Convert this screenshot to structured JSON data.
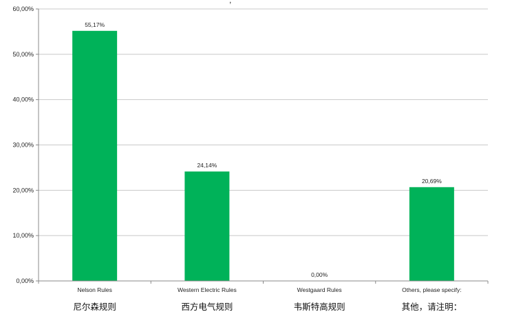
{
  "chart_data": {
    "type": "bar",
    "title": ",",
    "categories": [
      "Nelson Rules",
      "Western Electric Rules",
      "Westgaard Rules",
      "Others, please specify:"
    ],
    "categories_cn": [
      "尼尔森规则",
      "西方电气规则",
      "韦斯特高规则",
      "其他，请注明："
    ],
    "values": [
      55.17,
      24.14,
      0.0,
      20.69
    ],
    "data_labels": [
      "55,17%",
      "24,14%",
      "0,00%",
      "20,69%"
    ],
    "y_ticks": [
      0,
      10,
      20,
      30,
      40,
      50,
      60
    ],
    "y_tick_labels": [
      "0,00%",
      "10,00%",
      "20,00%",
      "30,00%",
      "40,00%",
      "50,00%",
      "60,00%"
    ],
    "ylim": [
      0,
      60
    ],
    "grid": true,
    "xlabel": "",
    "ylabel": "",
    "bar_color": "#00b259",
    "grid_color": "#c8c8c8"
  }
}
